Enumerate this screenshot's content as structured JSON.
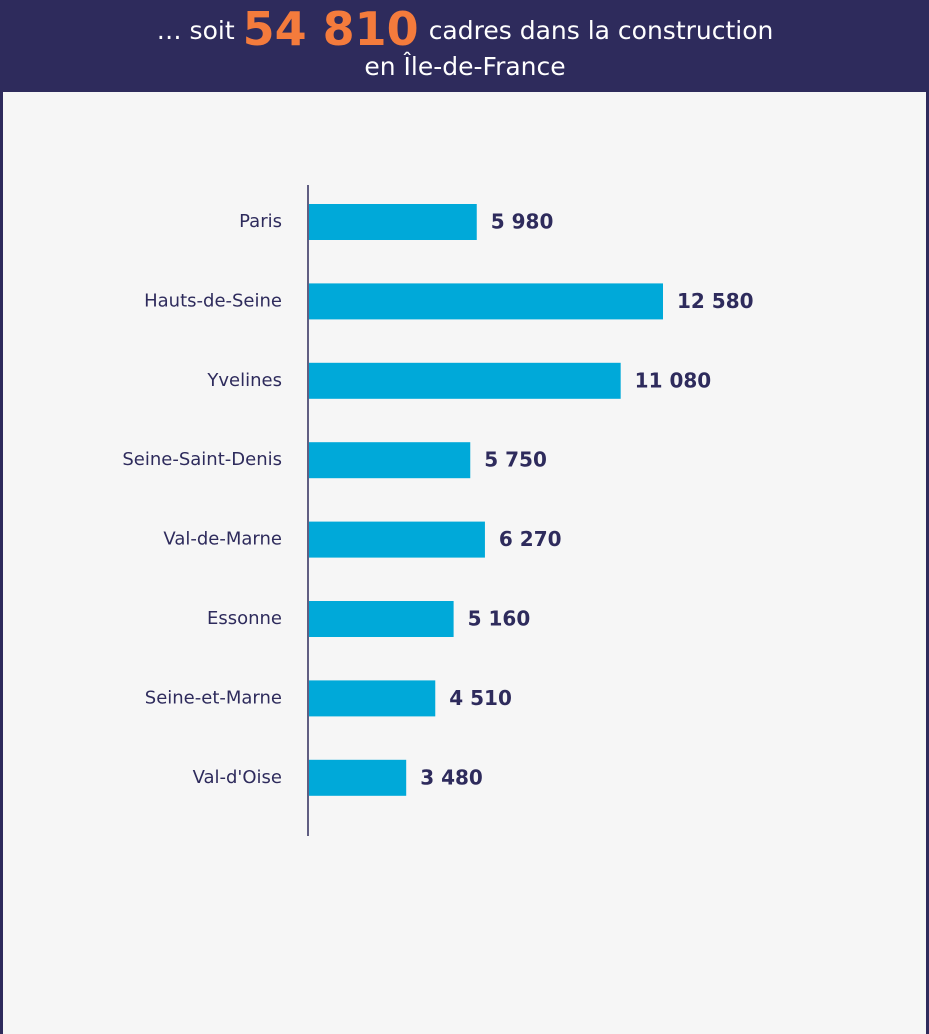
{
  "chart_data": {
    "type": "bar",
    "orientation": "horizontal",
    "title": {
      "lead": "… soit",
      "highlight": "54 810",
      "rest": "cadres dans la construction",
      "line2": "en Île-de-France"
    },
    "categories": [
      "Paris",
      "Hauts-de-Seine",
      "Yvelines",
      "Seine-Saint-Denis",
      "Val-de-Marne",
      "Essonne",
      "Seine-et-Marne",
      "Val-d'Oise"
    ],
    "values": [
      5980,
      12580,
      11080,
      5750,
      6270,
      5160,
      4510,
      3480
    ],
    "value_labels": [
      "5 980",
      "12 580",
      "11 080",
      "5 750",
      "6 270",
      "5 160",
      "4 510",
      "3 480"
    ],
    "color": "#00a9d9",
    "highlight_color": "#f47b3c"
  }
}
